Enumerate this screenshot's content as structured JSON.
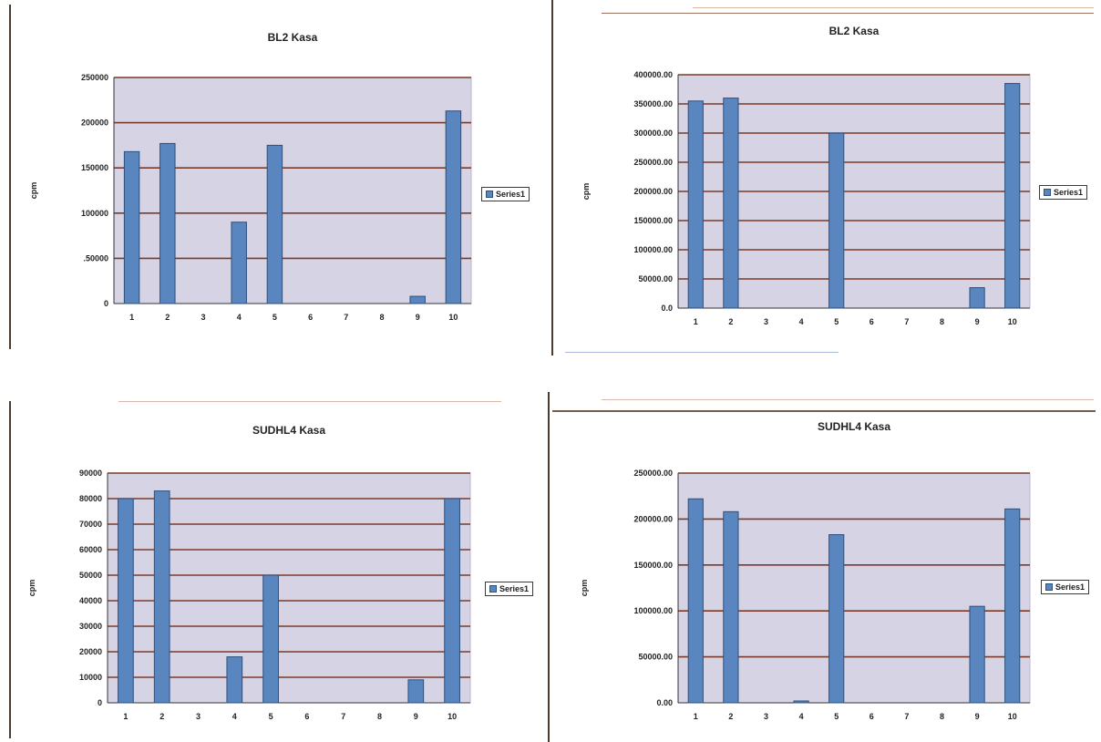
{
  "chart_data": [
    {
      "type": "bar",
      "title": "BL2 Kasa",
      "ylabel": "cpm",
      "categories": [
        "1",
        "2",
        "3",
        "4",
        "5",
        "6",
        "7",
        "8",
        "9",
        "10"
      ],
      "ytick_labels": [
        "0",
        ".50000",
        "100000",
        "150000",
        "200000",
        "250000"
      ],
      "ylim": [
        0,
        250000
      ],
      "grid": true,
      "legend_position": "right",
      "series": [
        {
          "name": "Series1",
          "values": [
            168000,
            177000,
            0,
            90000,
            175000,
            0,
            0,
            0,
            8000,
            213000
          ]
        }
      ],
      "legend_label": "Series1"
    },
    {
      "type": "bar",
      "title": "BL2 Kasa",
      "ylabel": "cpm",
      "categories": [
        "1",
        "2",
        "3",
        "4",
        "5",
        "6",
        "7",
        "8",
        "9",
        "10"
      ],
      "ytick_labels": [
        "0.0",
        "50000.00",
        "100000.00",
        "150000.00",
        "200000.00",
        "250000.00",
        "300000.00",
        "350000.00",
        "400000.00"
      ],
      "ylim": [
        0,
        400000
      ],
      "grid": true,
      "legend_position": "right",
      "series": [
        {
          "name": "Series1",
          "values": [
            355000,
            360000,
            0,
            0,
            300000,
            0,
            0,
            0,
            35000,
            385000
          ]
        }
      ],
      "legend_label": "Series1"
    },
    {
      "type": "bar",
      "title": "SUDHL4 Kasa",
      "ylabel": "cpm",
      "categories": [
        "1",
        "2",
        "3",
        "4",
        "5",
        "6",
        "7",
        "8",
        "9",
        "10"
      ],
      "ytick_labels": [
        "0",
        "10000",
        "20000",
        "30000",
        "40000",
        "50000",
        "60000",
        "70000",
        "80000",
        "90000"
      ],
      "ylim": [
        0,
        90000
      ],
      "grid": true,
      "legend_position": "right",
      "series": [
        {
          "name": "Series1",
          "values": [
            80000,
            83000,
            0,
            18000,
            50000,
            0,
            0,
            0,
            9000,
            80000
          ]
        }
      ],
      "legend_label": "Series1"
    },
    {
      "type": "bar",
      "title": "SUDHL4 Kasa",
      "ylabel": "cpm",
      "categories": [
        "1",
        "2",
        "3",
        "4",
        "5",
        "6",
        "7",
        "8",
        "9",
        "10"
      ],
      "ytick_labels": [
        "0.00",
        "50000.00",
        "100000.00",
        "150000.00",
        "200000.00",
        "250000.00"
      ],
      "ylim": [
        0,
        250000
      ],
      "grid": true,
      "legend_position": "right",
      "series": [
        {
          "name": "Series1",
          "values": [
            222000,
            208000,
            0,
            2000,
            183000,
            0,
            0,
            0,
            105000,
            211000
          ]
        }
      ],
      "legend_label": "Series1"
    }
  ],
  "colors": {
    "bar_fill": "#5a86c0",
    "bar_edge": "#2c4f7c",
    "plot_bg": "#d6d4e4",
    "grid": "#7a3a2a",
    "text": "#222222"
  }
}
